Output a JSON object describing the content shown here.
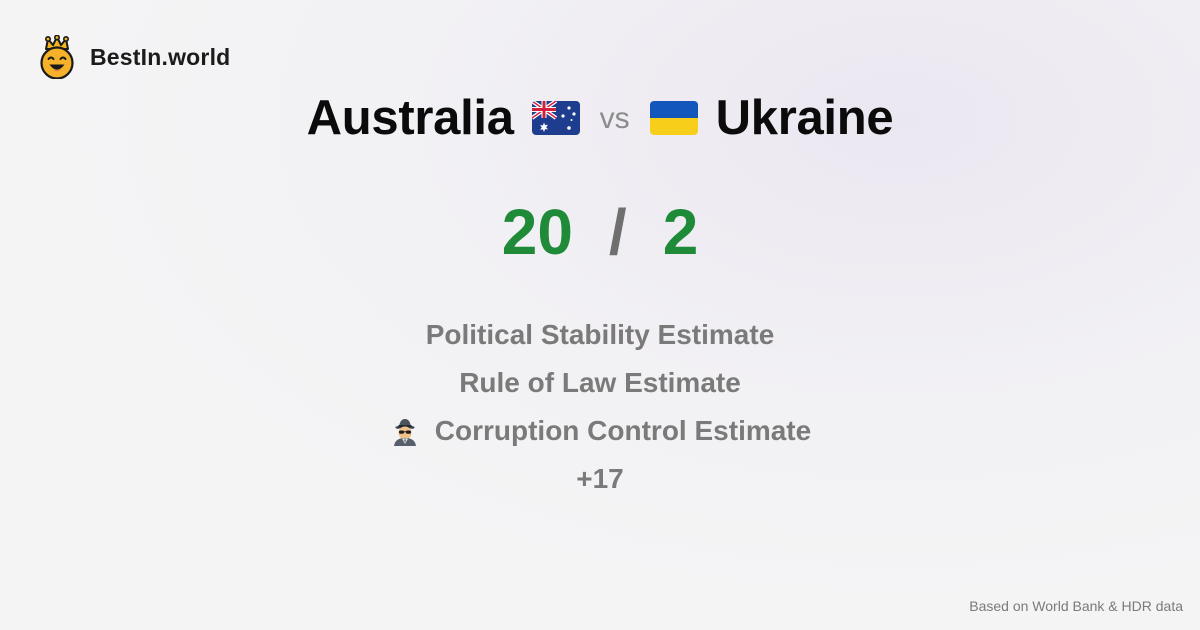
{
  "brand": {
    "name": "BestIn.world",
    "icon": "crowned-smiley-icon"
  },
  "comparison": {
    "left_country": "Australia",
    "left_flag": "australia-flag-icon",
    "vs_label": "vs",
    "right_country": "Ukraine",
    "right_flag": "ukraine-flag-icon"
  },
  "score": {
    "left": "20",
    "separator": "/",
    "right": "2",
    "colors": {
      "value": "#1f8a38",
      "separator": "#6f6f6f"
    }
  },
  "metrics": {
    "items": [
      {
        "label": "Political Stability Estimate",
        "icon": ""
      },
      {
        "label": "Rule of Law Estimate",
        "icon": ""
      },
      {
        "label": "Corruption Control Estimate",
        "icon": "spy-icon"
      }
    ],
    "more": "+17"
  },
  "footer": {
    "source": "Based on World Bank & HDR data"
  }
}
